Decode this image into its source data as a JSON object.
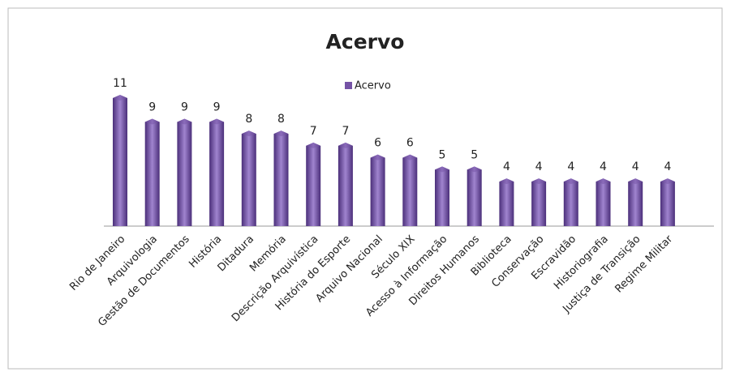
{
  "chart_data": {
    "type": "bar",
    "title": "Acervo",
    "categories": [
      "Rio de Janeiro",
      "Arquivologia",
      "Gestão de Documentos",
      "História",
      "Ditadura",
      "Memória",
      "Descrição Arquivística",
      "História do Esporte",
      "Arquivo Nacional",
      "Século XIX",
      "Acesso à Informação",
      "Direitos Humanos",
      "Biblioteca",
      "Conservação",
      "Escravidão",
      "Historiografia",
      "Justiça de Transição",
      "Regime Militar"
    ],
    "series": [
      {
        "name": "Acervo",
        "color": "#7553a6",
        "values": [
          11,
          9,
          9,
          9,
          8,
          8,
          7,
          7,
          6,
          6,
          5,
          5,
          4,
          4,
          4,
          4,
          4,
          4
        ]
      }
    ],
    "legend": "top"
  }
}
